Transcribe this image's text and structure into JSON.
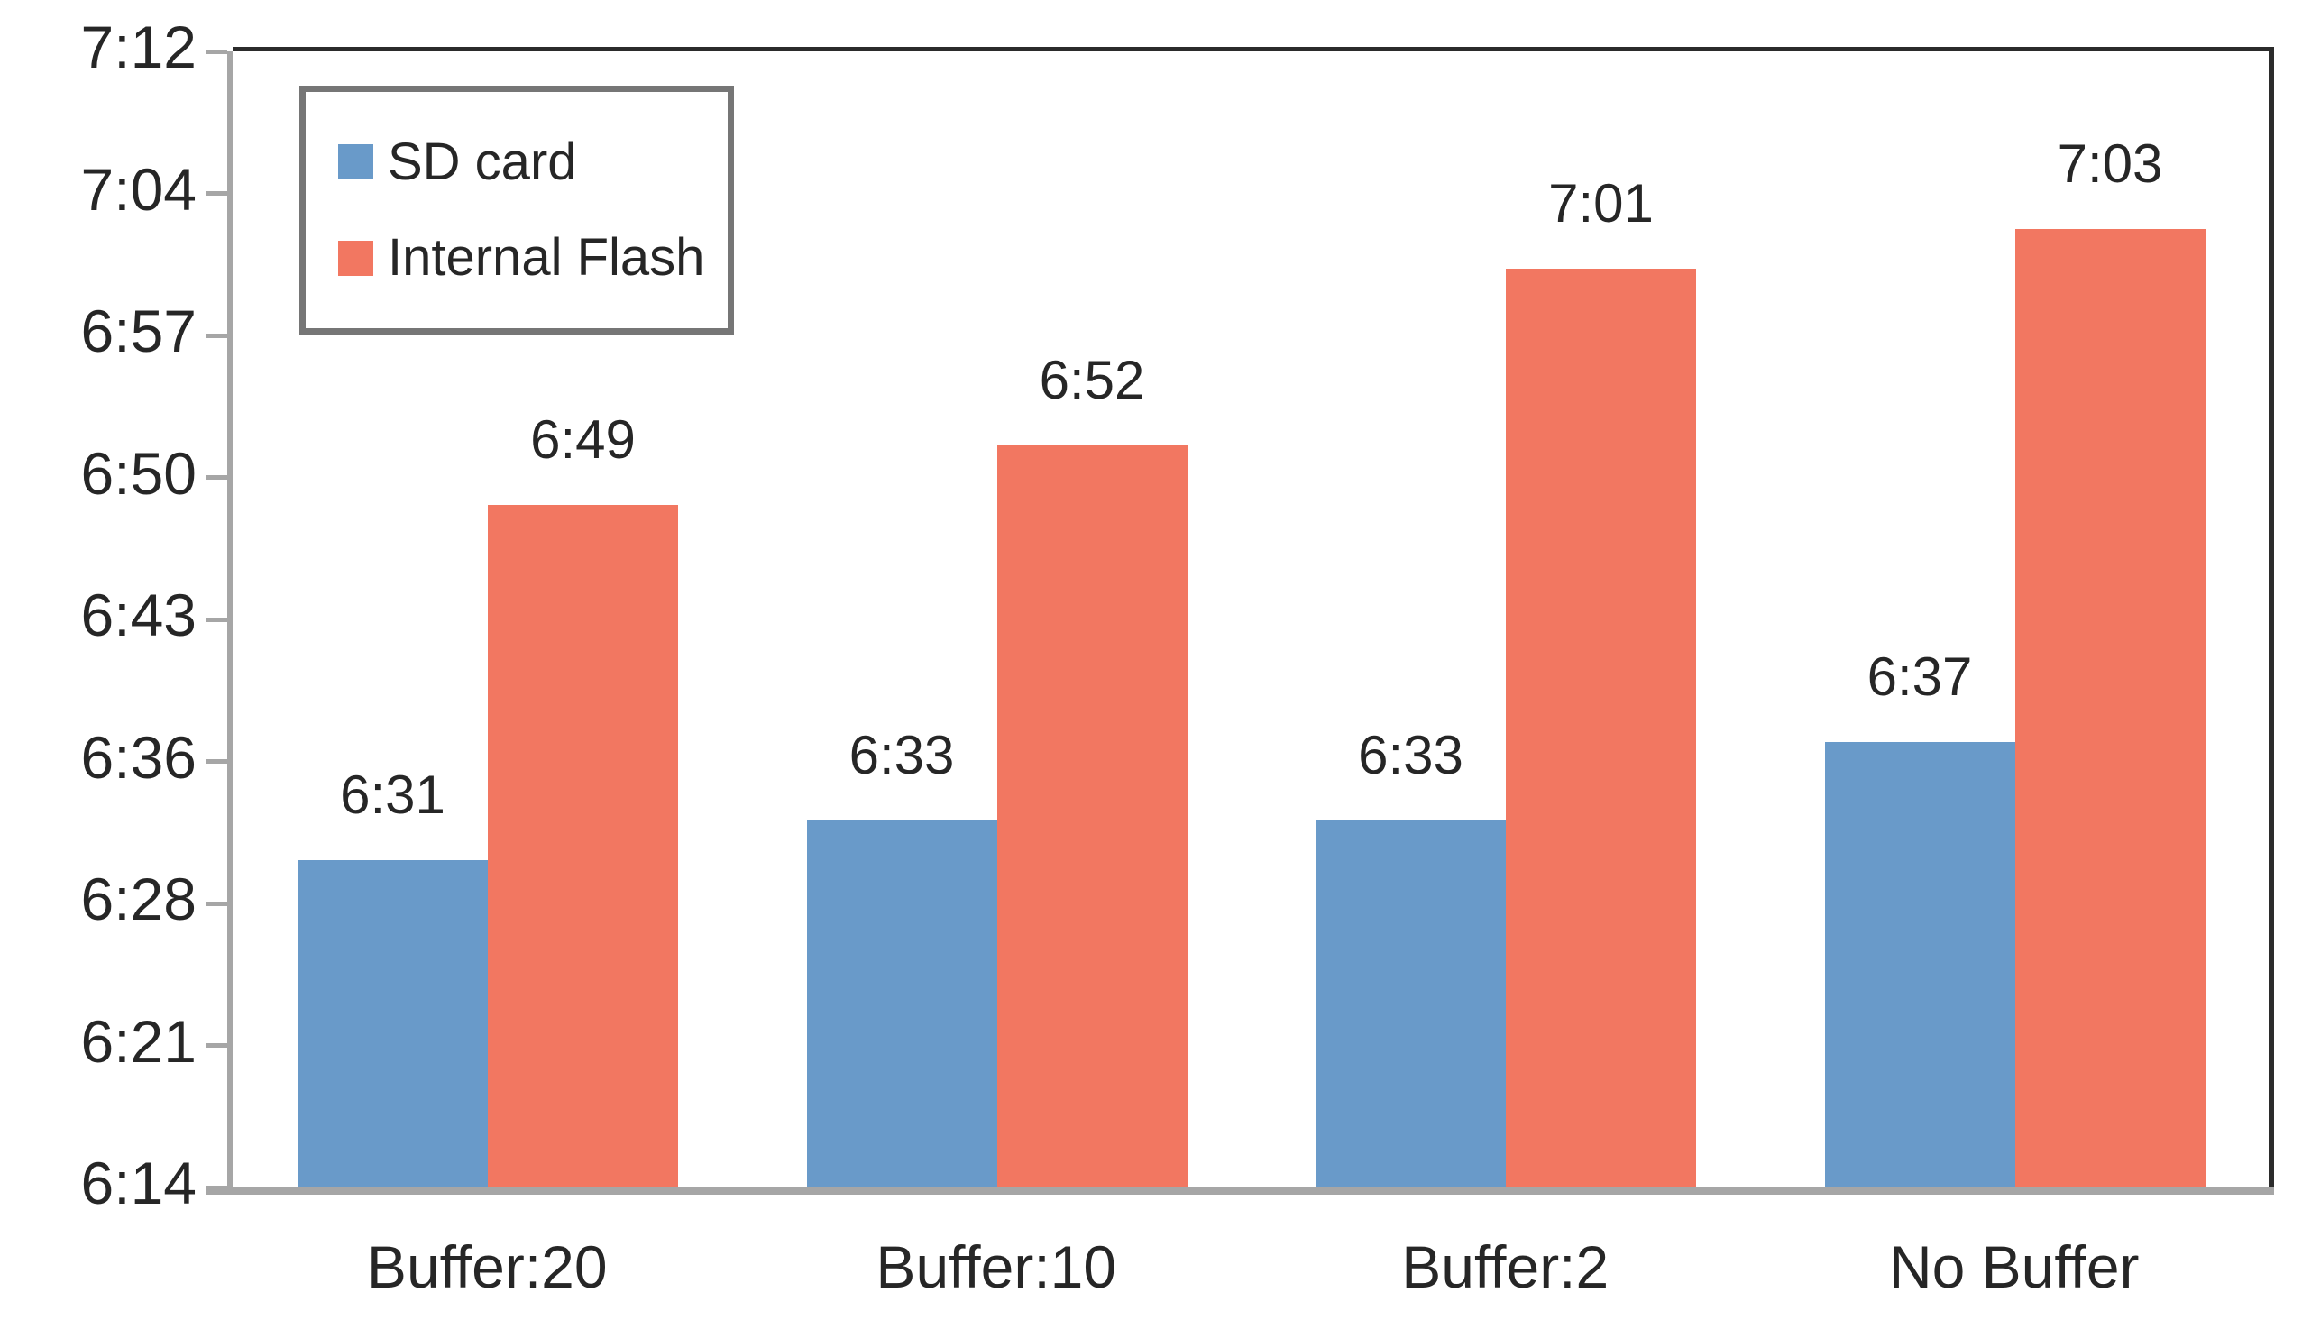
{
  "chart_data": {
    "type": "bar",
    "title": "",
    "xlabel": "",
    "ylabel": "",
    "categories": [
      "Buffer:20",
      "Buffer:10",
      "Buffer:2",
      "No Buffer"
    ],
    "series": [
      {
        "name": "SD card",
        "color": "#699AC9",
        "value_labels": [
          "6:31",
          "6:33",
          "6:33",
          "6:37"
        ],
        "values_minutes": [
          391,
          393,
          393,
          397
        ]
      },
      {
        "name": "Internal Flash",
        "color": "#F27761",
        "value_labels": [
          "6:49",
          "6:52",
          "7:01",
          "7:03"
        ],
        "values_minutes": [
          409,
          412,
          421,
          423
        ]
      }
    ],
    "y_axis": {
      "min_minutes": 374.4,
      "max_minutes": 432,
      "tick_labels_top_to_bottom": [
        "7:12",
        "7:04",
        "6:57",
        "6:50",
        "6:43",
        "6:36",
        "6:28",
        "6:21",
        "6:14"
      ],
      "format": "h:mm"
    },
    "legend_position": "top-left",
    "grid": false,
    "colors": {
      "axis_line": "#a6a6a6",
      "plot_border": "#2b2b2b",
      "legend_border": "#767676",
      "text": "#262626"
    }
  }
}
